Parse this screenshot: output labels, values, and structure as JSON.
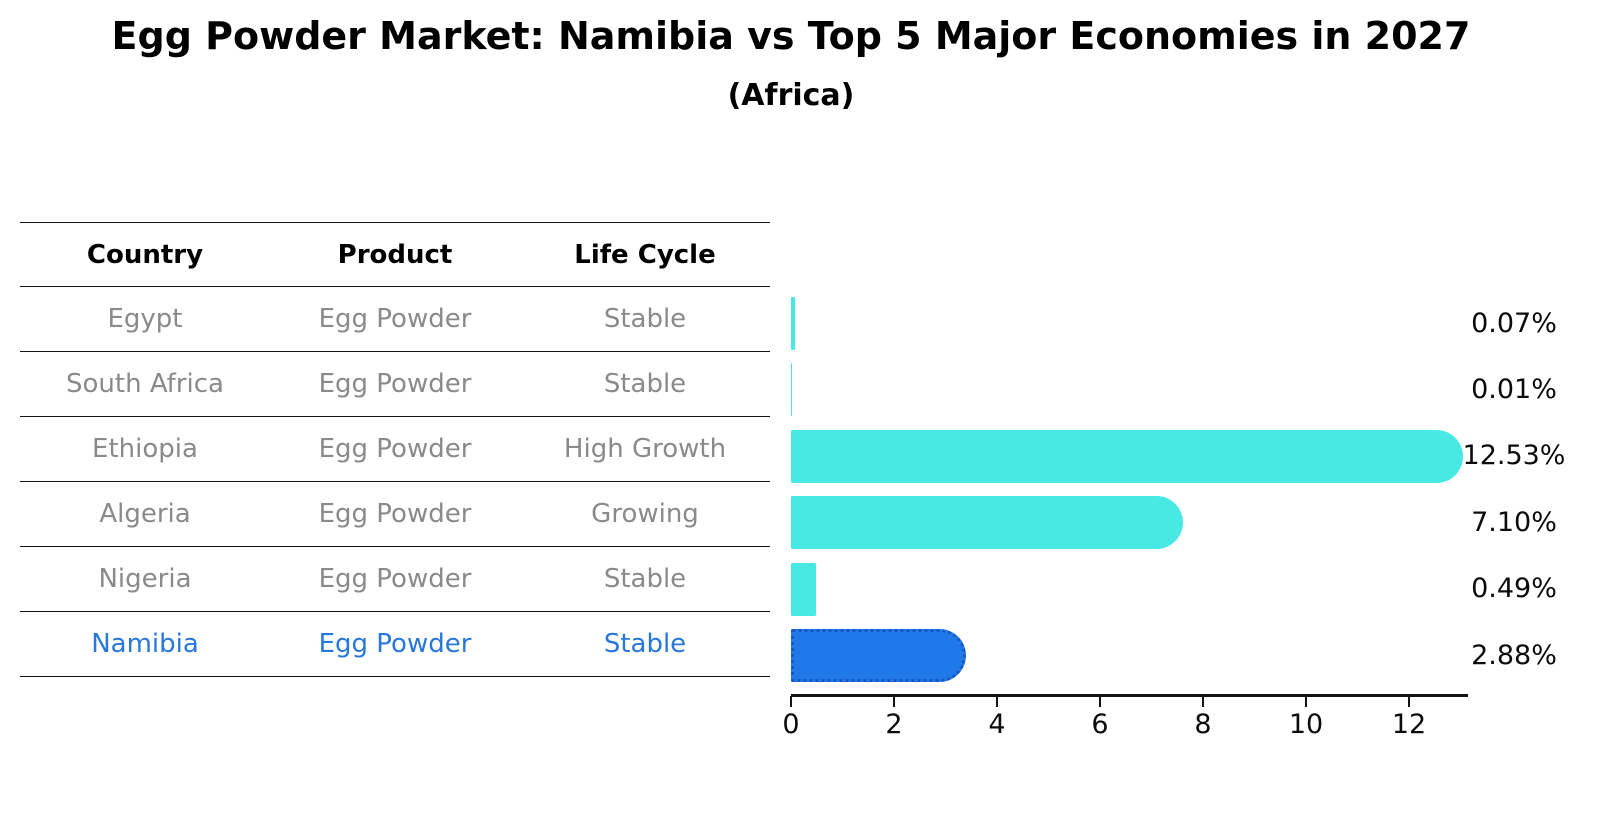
{
  "title": "Egg Powder Market: Namibia vs Top 5 Major Economies in 2027",
  "subtitle": "(Africa)",
  "table": {
    "columns": [
      "Country",
      "Product",
      "Life Cycle"
    ],
    "rows": [
      {
        "country": "Egypt",
        "product": "Egg Powder",
        "life_cycle": "Stable",
        "highlight": false
      },
      {
        "country": "South Africa",
        "product": "Egg Powder",
        "life_cycle": "Stable",
        "highlight": false
      },
      {
        "country": "Ethiopia",
        "product": "Egg Powder",
        "life_cycle": "High Growth",
        "highlight": false
      },
      {
        "country": "Algeria",
        "product": "Egg Powder",
        "life_cycle": "Growing",
        "highlight": false
      },
      {
        "country": "Nigeria",
        "product": "Egg Powder",
        "life_cycle": "Stable",
        "highlight": false
      },
      {
        "country": "Namibia",
        "product": "Egg Powder",
        "life_cycle": "Stable",
        "highlight": true
      }
    ]
  },
  "chart_data": {
    "type": "bar",
    "orientation": "horizontal",
    "title": "Egg Powder Market: Namibia vs Top 5 Major Economies in 2027",
    "subtitle": "(Africa)",
    "categories": [
      "Egypt",
      "South Africa",
      "Ethiopia",
      "Algeria",
      "Nigeria",
      "Namibia"
    ],
    "values": [
      0.07,
      0.01,
      12.53,
      7.1,
      0.49,
      2.88
    ],
    "value_labels": [
      "0.07%",
      "0.01%",
      "12.53%",
      "7.10%",
      "0.49%",
      "2.88%"
    ],
    "x_ticks": [
      "0",
      "2",
      "4",
      "6",
      "8",
      "10",
      "12"
    ],
    "x_tick_values": [
      0,
      2,
      4,
      6,
      8,
      10,
      12
    ],
    "xlim": [
      0,
      13.15
    ],
    "grid": false,
    "legend": "none",
    "highlight_index": 5
  },
  "colors": {
    "bar": "#48e8e4",
    "highlight_bar": "#2178e8",
    "highlight_border": "#1559c4",
    "highlight_text": "#2878dc",
    "row_text": "#8a8a8a",
    "axis": "#141414"
  }
}
